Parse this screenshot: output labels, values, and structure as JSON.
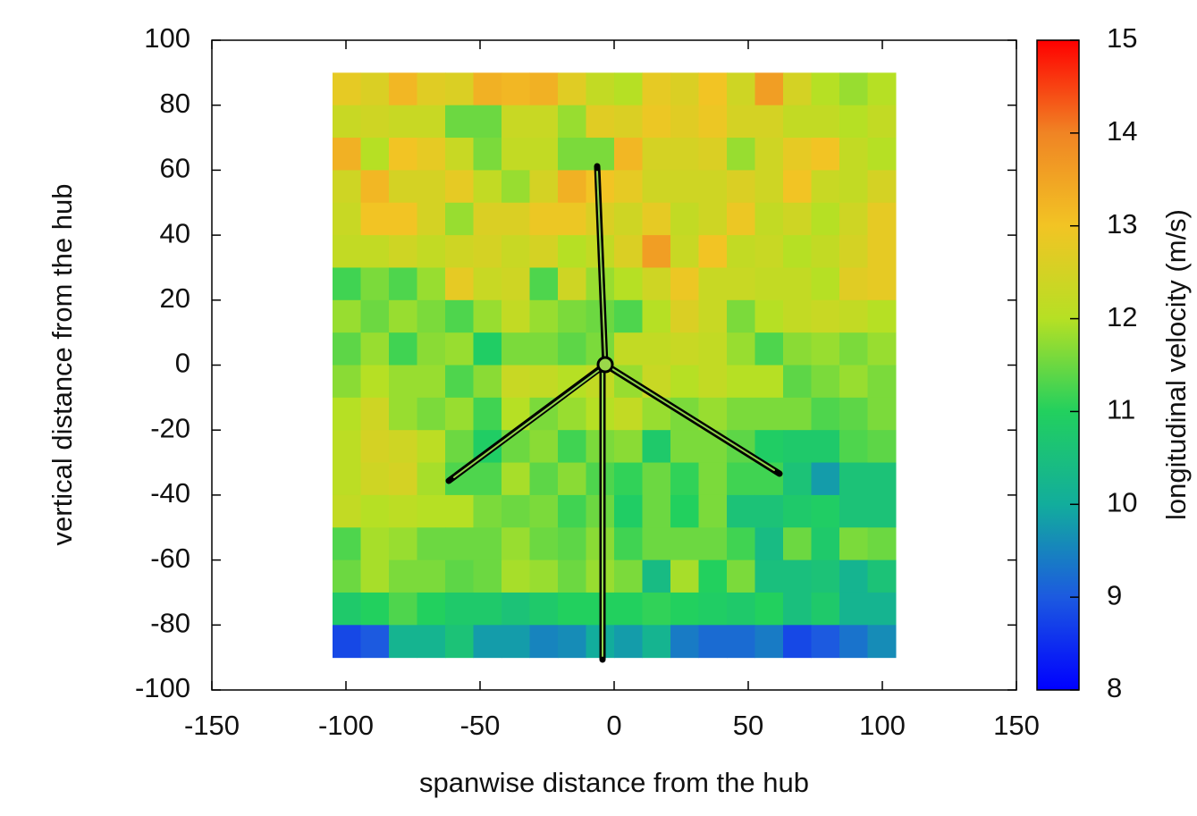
{
  "chart_data": {
    "type": "heatmap",
    "xlabel": "spanwise distance from the hub",
    "ylabel": "vertical distance from the hub",
    "colorbar_label": "longitudinal velocity (m/s)",
    "xlim": [
      -150,
      150
    ],
    "xticks": [
      -150,
      -100,
      -50,
      0,
      50,
      100,
      150
    ],
    "ylim": [
      -100,
      100
    ],
    "yticks": [
      -100,
      -80,
      -60,
      -40,
      -20,
      0,
      20,
      40,
      60,
      80,
      100
    ],
    "zlim": [
      8,
      15
    ],
    "zticks": [
      8,
      9,
      10,
      11,
      12,
      13,
      14,
      15
    ],
    "colorscale": [
      "#0000ff",
      "#1c5ae0",
      "#12ad9c",
      "#22d05e",
      "#b6e024",
      "#f2c424",
      "#f08424",
      "#ff0000"
    ],
    "x": [
      -99.75,
      -89.25,
      -78.75,
      -68.25,
      -57.75,
      -47.25,
      -36.75,
      -26.25,
      -15.75,
      -5.25,
      5.25,
      15.75,
      26.25,
      36.75,
      47.25,
      57.75,
      68.25,
      78.75,
      89.25,
      99.75
    ],
    "y": [
      85,
      75,
      65,
      55,
      45,
      35,
      25,
      15,
      5,
      -5,
      -15,
      -25,
      -35,
      -45,
      -55,
      -65,
      -75,
      -85
    ],
    "z": [
      [
        12.8,
        12.6,
        13.2,
        12.7,
        12.6,
        13.3,
        13.2,
        13.3,
        12.7,
        12.2,
        12.0,
        12.8,
        12.6,
        13.0,
        12.4,
        13.6,
        12.5,
        12.0,
        11.8,
        12.0
      ],
      [
        12.3,
        12.4,
        12.3,
        12.3,
        11.5,
        11.5,
        12.3,
        12.3,
        11.8,
        12.7,
        12.6,
        12.9,
        12.7,
        12.9,
        12.5,
        12.5,
        12.2,
        12.2,
        12.0,
        12.2
      ],
      [
        13.3,
        12.0,
        13.0,
        12.8,
        12.3,
        11.6,
        12.2,
        12.2,
        11.6,
        11.6,
        13.2,
        12.5,
        12.5,
        12.6,
        11.8,
        12.4,
        12.8,
        13.0,
        12.2,
        12.0
      ],
      [
        12.4,
        13.2,
        12.5,
        12.5,
        12.8,
        12.2,
        11.8,
        12.5,
        13.3,
        13.0,
        12.8,
        12.4,
        12.4,
        12.4,
        12.6,
        12.4,
        13.0,
        12.3,
        12.2,
        12.5
      ],
      [
        12.3,
        13.0,
        13.0,
        12.5,
        11.8,
        12.6,
        12.6,
        12.9,
        12.9,
        12.6,
        12.4,
        12.8,
        12.2,
        12.4,
        12.9,
        12.2,
        12.4,
        12.0,
        12.4,
        12.8
      ],
      [
        12.2,
        12.2,
        12.4,
        12.2,
        12.4,
        12.5,
        12.3,
        12.5,
        12.0,
        12.2,
        12.6,
        13.6,
        12.3,
        13.0,
        12.2,
        12.3,
        12.0,
        12.2,
        12.5,
        12.8
      ],
      [
        11.2,
        11.6,
        11.3,
        11.8,
        12.8,
        12.3,
        12.4,
        11.3,
        12.4,
        11.8,
        12.0,
        12.4,
        12.9,
        12.3,
        12.3,
        12.2,
        12.2,
        12.0,
        12.7,
        12.8
      ],
      [
        11.8,
        11.5,
        11.8,
        11.6,
        11.3,
        11.8,
        12.2,
        11.8,
        11.6,
        11.5,
        11.3,
        12.0,
        12.6,
        12.3,
        11.6,
        12.0,
        12.2,
        12.3,
        12.2,
        12.0
      ],
      [
        11.4,
        11.8,
        11.2,
        11.7,
        11.8,
        10.9,
        11.6,
        11.6,
        11.4,
        11.6,
        12.2,
        12.2,
        12.3,
        12.2,
        11.8,
        11.3,
        11.7,
        11.8,
        11.6,
        11.8
      ],
      [
        11.7,
        12.0,
        11.8,
        11.8,
        11.3,
        11.7,
        12.3,
        12.2,
        12.0,
        12.2,
        11.8,
        12.3,
        12.0,
        12.2,
        12.0,
        12.0,
        11.4,
        11.6,
        11.8,
        11.6
      ],
      [
        12.0,
        12.4,
        11.8,
        11.6,
        11.8,
        11.2,
        12.0,
        11.6,
        11.8,
        12.0,
        12.2,
        11.8,
        11.6,
        11.8,
        11.6,
        11.6,
        11.6,
        11.3,
        11.4,
        11.6
      ],
      [
        12.1,
        12.5,
        12.4,
        12.1,
        11.5,
        10.9,
        11.5,
        11.7,
        11.2,
        11.6,
        11.7,
        10.8,
        11.6,
        11.6,
        11.4,
        10.9,
        10.8,
        10.8,
        11.3,
        11.4
      ],
      [
        12.1,
        12.4,
        12.5,
        11.9,
        11.3,
        11.3,
        11.9,
        11.4,
        11.7,
        11.3,
        11.1,
        11.5,
        11.1,
        11.6,
        11.2,
        11.2,
        10.6,
        9.8,
        10.6,
        10.6
      ],
      [
        12.2,
        12.0,
        12.1,
        12.0,
        12.0,
        11.6,
        11.5,
        11.6,
        11.2,
        11.5,
        10.9,
        11.5,
        11.0,
        11.6,
        10.6,
        10.6,
        10.8,
        10.9,
        10.6,
        10.6
      ],
      [
        11.3,
        11.9,
        11.8,
        11.5,
        11.5,
        11.5,
        11.8,
        11.5,
        11.4,
        11.7,
        11.2,
        11.5,
        11.5,
        11.5,
        11.2,
        10.4,
        11.5,
        10.8,
        11.6,
        11.5
      ],
      [
        11.5,
        11.9,
        11.6,
        11.6,
        11.4,
        11.5,
        11.9,
        11.8,
        11.5,
        11.8,
        11.6,
        10.4,
        11.9,
        11.0,
        11.6,
        10.5,
        10.5,
        10.6,
        10.2,
        10.6
      ],
      [
        10.8,
        11.0,
        11.3,
        11.0,
        10.8,
        10.8,
        10.6,
        10.8,
        11.0,
        11.0,
        11.0,
        11.1,
        11.0,
        10.9,
        10.8,
        11.0,
        10.5,
        10.8,
        10.2,
        10.2
      ],
      [
        8.8,
        9.0,
        10.2,
        10.2,
        10.6,
        9.8,
        9.8,
        9.5,
        9.6,
        10.0,
        9.8,
        10.2,
        9.4,
        9.2,
        9.2,
        9.4,
        8.8,
        9.0,
        9.3,
        9.6
      ]
    ]
  }
}
